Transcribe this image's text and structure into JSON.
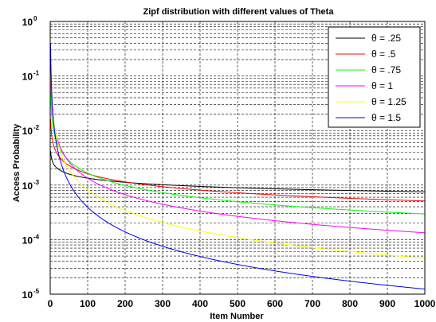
{
  "chart_data": {
    "type": "line",
    "title": "Zipf distribution with different values of Theta",
    "xlabel": "Item Number",
    "ylabel": "Access Probability",
    "xlim": [
      0,
      1000
    ],
    "ylim": [
      1e-05,
      1
    ],
    "yscale": "log",
    "grid": true,
    "legend_position": "top-right",
    "x_ticks": [
      "0",
      "100",
      "200",
      "300",
      "400",
      "500",
      "600",
      "700",
      "800",
      "900",
      "1000"
    ],
    "y_ticks": [
      {
        "base": "10",
        "exp": "-5",
        "value": 1e-05
      },
      {
        "base": "10",
        "exp": "-4",
        "value": 0.0001
      },
      {
        "base": "10",
        "exp": "-3",
        "value": 0.001
      },
      {
        "base": "10",
        "exp": "-2",
        "value": 0.01
      },
      {
        "base": "10",
        "exp": "-1",
        "value": 0.1
      },
      {
        "base": "10",
        "exp": "0",
        "value": 1
      }
    ],
    "series": [
      {
        "name": "θ = .25",
        "theta": 0.25,
        "color": "#000000"
      },
      {
        "name": "θ = .5",
        "theta": 0.5,
        "color": "#ff0000"
      },
      {
        "name": "θ = .75",
        "theta": 0.75,
        "color": "#00ff00"
      },
      {
        "name": "θ = 1",
        "theta": 1,
        "color": "#ff00ff"
      },
      {
        "name": "θ = 1.25",
        "theta": 1.25,
        "color": "#ffff00"
      },
      {
        "name": "θ = 1.5",
        "theta": 1.5,
        "color": "#0000ff"
      }
    ]
  }
}
